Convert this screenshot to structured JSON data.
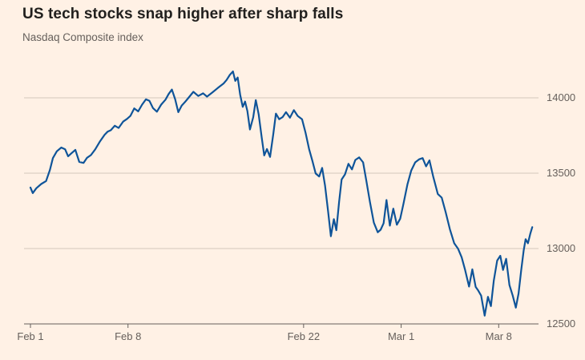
{
  "chart": {
    "title": "US tech stocks snap higher after sharp falls",
    "subtitle": "Nasdaq Composite index"
  },
  "colors": {
    "background": "#FFF1E5",
    "line": "#0F5499",
    "grid": "#D3C8BC",
    "axis": "#66605C",
    "title_text": "#21201E",
    "tick_text": "#66605C"
  },
  "chart_data": {
    "type": "line",
    "title": "US tech stocks snap higher after sharp falls",
    "subtitle": "Nasdaq Composite index",
    "ylabel": "",
    "xlabel": "",
    "grid": "horizontal",
    "legend": "none",
    "ylim": [
      12500,
      14250
    ],
    "xlim": [
      0,
      26
    ],
    "x_unit": "trading days from Feb 1",
    "line_color": "#0F5499",
    "yticks": [
      {
        "v": 14000,
        "label": "14000"
      },
      {
        "v": 13500,
        "label": "13500"
      },
      {
        "v": 13000,
        "label": "13000"
      },
      {
        "v": 12500,
        "label": "12500"
      }
    ],
    "xticks": [
      {
        "t": 0,
        "label": "Feb 1"
      },
      {
        "t": 5,
        "label": "Feb 8"
      },
      {
        "t": 14,
        "label": "Feb 22"
      },
      {
        "t": 19,
        "label": "Mar 1"
      },
      {
        "t": 24,
        "label": "Mar 8"
      }
    ],
    "series": [
      {
        "name": "Nasdaq Composite index",
        "points": [
          [
            0.0,
            13405
          ],
          [
            0.12,
            13368
          ],
          [
            0.3,
            13400
          ],
          [
            0.55,
            13428
          ],
          [
            0.8,
            13448
          ],
          [
            1.0,
            13522
          ],
          [
            1.15,
            13600
          ],
          [
            1.35,
            13645
          ],
          [
            1.58,
            13670
          ],
          [
            1.78,
            13658
          ],
          [
            1.93,
            13612
          ],
          [
            2.1,
            13632
          ],
          [
            2.3,
            13655
          ],
          [
            2.5,
            13575
          ],
          [
            2.72,
            13568
          ],
          [
            2.9,
            13602
          ],
          [
            3.1,
            13620
          ],
          [
            3.32,
            13658
          ],
          [
            3.55,
            13708
          ],
          [
            3.8,
            13755
          ],
          [
            3.95,
            13775
          ],
          [
            4.12,
            13785
          ],
          [
            4.32,
            13815
          ],
          [
            4.52,
            13800
          ],
          [
            4.75,
            13842
          ],
          [
            4.95,
            13860
          ],
          [
            5.12,
            13880
          ],
          [
            5.32,
            13930
          ],
          [
            5.52,
            13910
          ],
          [
            5.72,
            13955
          ],
          [
            5.92,
            13990
          ],
          [
            6.1,
            13980
          ],
          [
            6.28,
            13932
          ],
          [
            6.48,
            13908
          ],
          [
            6.7,
            13955
          ],
          [
            6.92,
            13988
          ],
          [
            7.08,
            14025
          ],
          [
            7.25,
            14055
          ],
          [
            7.42,
            13990
          ],
          [
            7.58,
            13905
          ],
          [
            7.75,
            13948
          ],
          [
            7.92,
            13972
          ],
          [
            8.1,
            14000
          ],
          [
            8.35,
            14040
          ],
          [
            8.6,
            14012
          ],
          [
            8.85,
            14030
          ],
          [
            9.05,
            14008
          ],
          [
            9.32,
            14035
          ],
          [
            9.6,
            14065
          ],
          [
            9.9,
            14095
          ],
          [
            10.05,
            14118
          ],
          [
            10.22,
            14152
          ],
          [
            10.38,
            14175
          ],
          [
            10.5,
            14112
          ],
          [
            10.62,
            14135
          ],
          [
            10.75,
            14020
          ],
          [
            10.88,
            13940
          ],
          [
            11.0,
            13975
          ],
          [
            11.12,
            13912
          ],
          [
            11.25,
            13790
          ],
          [
            11.42,
            13872
          ],
          [
            11.55,
            13985
          ],
          [
            11.7,
            13890
          ],
          [
            11.85,
            13740
          ],
          [
            11.98,
            13618
          ],
          [
            12.12,
            13660
          ],
          [
            12.28,
            13608
          ],
          [
            12.45,
            13762
          ],
          [
            12.58,
            13895
          ],
          [
            12.75,
            13858
          ],
          [
            12.92,
            13872
          ],
          [
            13.1,
            13905
          ],
          [
            13.3,
            13868
          ],
          [
            13.5,
            13918
          ],
          [
            13.7,
            13880
          ],
          [
            13.92,
            13858
          ],
          [
            14.1,
            13768
          ],
          [
            14.28,
            13660
          ],
          [
            14.45,
            13582
          ],
          [
            14.62,
            13498
          ],
          [
            14.8,
            13478
          ],
          [
            14.95,
            13535
          ],
          [
            15.1,
            13418
          ],
          [
            15.25,
            13252
          ],
          [
            15.4,
            13082
          ],
          [
            15.55,
            13195
          ],
          [
            15.68,
            13122
          ],
          [
            15.82,
            13312
          ],
          [
            15.95,
            13458
          ],
          [
            16.12,
            13492
          ],
          [
            16.3,
            13562
          ],
          [
            16.48,
            13525
          ],
          [
            16.65,
            13588
          ],
          [
            16.85,
            13605
          ],
          [
            17.05,
            13572
          ],
          [
            17.22,
            13448
          ],
          [
            17.4,
            13310
          ],
          [
            17.6,
            13172
          ],
          [
            17.8,
            13108
          ],
          [
            17.95,
            13125
          ],
          [
            18.1,
            13168
          ],
          [
            18.25,
            13322
          ],
          [
            18.42,
            13152
          ],
          [
            18.6,
            13265
          ],
          [
            18.78,
            13158
          ],
          [
            18.95,
            13198
          ],
          [
            19.12,
            13298
          ],
          [
            19.32,
            13425
          ],
          [
            19.52,
            13518
          ],
          [
            19.72,
            13572
          ],
          [
            19.92,
            13592
          ],
          [
            20.1,
            13600
          ],
          [
            20.28,
            13545
          ],
          [
            20.45,
            13585
          ],
          [
            20.65,
            13475
          ],
          [
            20.88,
            13362
          ],
          [
            21.08,
            13338
          ],
          [
            21.28,
            13242
          ],
          [
            21.5,
            13128
          ],
          [
            21.72,
            13035
          ],
          [
            21.92,
            12998
          ],
          [
            22.1,
            12942
          ],
          [
            22.28,
            12858
          ],
          [
            22.48,
            12748
          ],
          [
            22.65,
            12862
          ],
          [
            22.82,
            12745
          ],
          [
            22.95,
            12722
          ],
          [
            23.1,
            12688
          ],
          [
            23.28,
            12555
          ],
          [
            23.45,
            12680
          ],
          [
            23.6,
            12618
          ],
          [
            23.75,
            12788
          ],
          [
            23.92,
            12920
          ],
          [
            24.08,
            12952
          ],
          [
            24.22,
            12858
          ],
          [
            24.38,
            12932
          ],
          [
            24.55,
            12758
          ],
          [
            24.72,
            12688
          ],
          [
            24.88,
            12608
          ],
          [
            25.02,
            12702
          ],
          [
            25.15,
            12852
          ],
          [
            25.28,
            12988
          ],
          [
            25.38,
            13062
          ],
          [
            25.5,
            13035
          ],
          [
            25.62,
            13098
          ],
          [
            25.72,
            13142
          ]
        ]
      }
    ]
  }
}
